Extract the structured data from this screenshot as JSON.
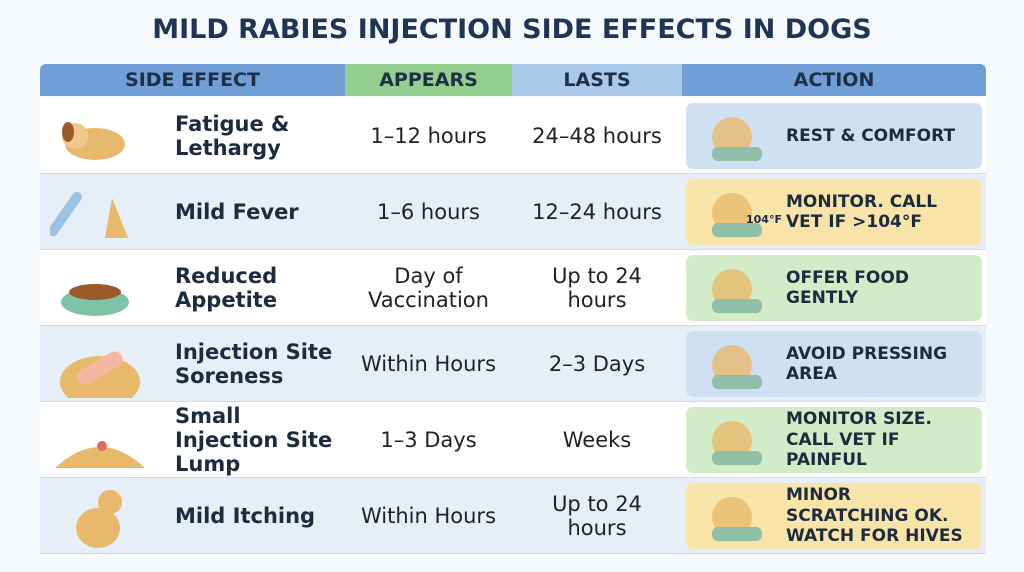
{
  "header": {
    "title": "MILD RABIES INJECTION SIDE EFFECTS IN DOGS"
  },
  "table": {
    "columns": [
      "SIDE EFFECT",
      "APPEARS",
      "LASTS",
      "ACTION"
    ],
    "rows": [
      {
        "side_effect": "Fatigue & Lethargy",
        "appears": "1–12 hours",
        "lasts": "24–48 hours",
        "action": "REST & COMFORT"
      },
      {
        "side_effect": "Mild Fever",
        "appears": "1–6 hours",
        "lasts": "12–24 hours",
        "action": "MONITOR. CALL VET IF >104°F",
        "icon_label": "104°F"
      },
      {
        "side_effect": "Reduced Appetite",
        "appears": "Day of Vaccination",
        "lasts": "Up to 24 hours",
        "action": "OFFER FOOD GENTLY"
      },
      {
        "side_effect": "Injection Site Soreness",
        "appears": "Within Hours",
        "lasts": "2–3 Days",
        "action": "AVOID PRESSING AREA"
      },
      {
        "side_effect": "Small Injection Site Lump",
        "appears": "1–3 Days",
        "lasts": "Weeks",
        "action": "MONITOR SIZE. CALL VET IF PAINFUL"
      },
      {
        "side_effect": "Mild Itching",
        "appears": "Within Hours",
        "lasts": "Up to 24 hours",
        "action": "MINOR SCRATCHING OK. WATCH FOR HIVES"
      }
    ]
  }
}
